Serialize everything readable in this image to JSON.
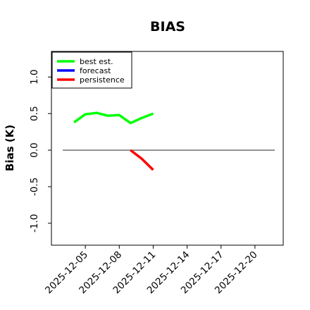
{
  "chart_data": {
    "type": "line",
    "title": "BIAS",
    "ylabel": "Bias (K)",
    "xlabel": "",
    "ylim": [
      -1.3,
      1.35
    ],
    "xlim": [
      "2025-12-02T00:00",
      "2025-12-22T12:00"
    ],
    "yticks": [
      "-1.0",
      "-0.5",
      "0.0",
      "0.5",
      "1.0"
    ],
    "ytick_values": [
      -1.0,
      -0.5,
      0.0,
      0.5,
      1.0
    ],
    "xticks": [
      {
        "label": "2025-12-05",
        "date": "2025-12-05",
        "color": "#000000"
      },
      {
        "label": "2025-12-08",
        "date": "2025-12-08",
        "color": "#000000"
      },
      {
        "label": "2025-12-11",
        "date": "2025-12-11",
        "color": "#228B22"
      },
      {
        "label": "2025-12-14",
        "date": "2025-12-14",
        "color": "#000000"
      },
      {
        "label": "2025-12-17",
        "date": "2025-12-17",
        "color": "#000000"
      },
      {
        "label": "2025-12-20",
        "date": "2025-12-20",
        "color": "#000000"
      }
    ],
    "grid": false,
    "legend_position": "upper-left",
    "zero_line": {
      "y": 0,
      "color": "#555555"
    },
    "series": [
      {
        "name": "best est.",
        "color": "#00ff00",
        "points": [
          {
            "x": "2025-12-04",
            "y": 0.38
          },
          {
            "x": "2025-12-05",
            "y": 0.49
          },
          {
            "x": "2025-12-06",
            "y": 0.51
          },
          {
            "x": "2025-12-07",
            "y": 0.47
          },
          {
            "x": "2025-12-08",
            "y": 0.48
          },
          {
            "x": "2025-12-09",
            "y": 0.37
          },
          {
            "x": "2025-12-10",
            "y": 0.44
          },
          {
            "x": "2025-12-11",
            "y": 0.5
          }
        ]
      },
      {
        "name": "forecast",
        "color": "#0000ff",
        "points": []
      },
      {
        "name": "persistence",
        "color": "#ff0000",
        "points": [
          {
            "x": "2025-12-09",
            "y": 0.0
          },
          {
            "x": "2025-12-10",
            "y": -0.12
          },
          {
            "x": "2025-12-11",
            "y": -0.27
          }
        ]
      }
    ]
  }
}
